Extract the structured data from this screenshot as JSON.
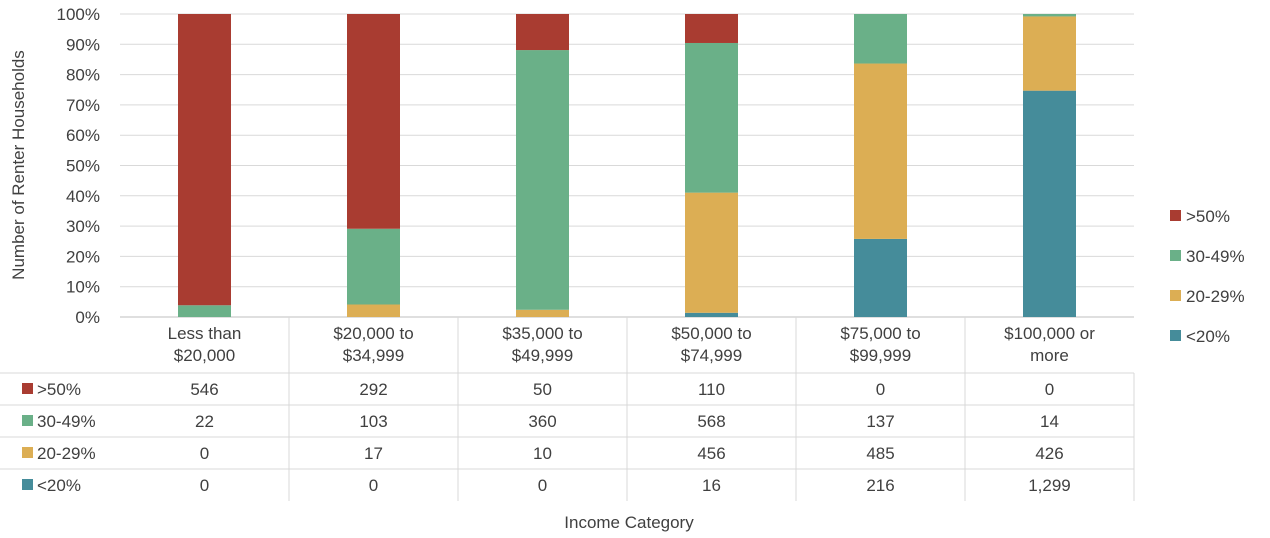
{
  "chart_data": {
    "type": "bar",
    "stacked": true,
    "normalized": true,
    "title": "",
    "xlabel": "Income Category",
    "ylabel": "Number of Renter Households",
    "ylim": [
      0,
      100
    ],
    "yticks": [
      "0%",
      "10%",
      "20%",
      "30%",
      "40%",
      "50%",
      "60%",
      "70%",
      "80%",
      "90%",
      "100%"
    ],
    "grid": true,
    "legend_position": "right",
    "categories": [
      [
        "Less than",
        "$20,000"
      ],
      [
        "$20,000 to",
        "$34,999"
      ],
      [
        "$35,000 to",
        "$49,999"
      ],
      [
        "$50,000 to",
        "$74,999"
      ],
      [
        "$75,000 to",
        "$99,999"
      ],
      [
        "$100,000 or",
        "more"
      ]
    ],
    "series": [
      {
        "name": "<20%",
        "color": "#458C9A",
        "values": [
          0,
          0,
          0,
          16,
          216,
          1299
        ],
        "labels": [
          "0",
          "0",
          "0",
          "16",
          "216",
          "1,299"
        ]
      },
      {
        "name": "20-29%",
        "color": "#DCAE54",
        "values": [
          0,
          17,
          10,
          456,
          485,
          426
        ],
        "labels": [
          "0",
          "17",
          "10",
          "456",
          "485",
          "426"
        ]
      },
      {
        "name": "30-49%",
        "color": "#6AB088",
        "values": [
          22,
          103,
          360,
          568,
          137,
          14
        ],
        "labels": [
          "22",
          "103",
          "360",
          "568",
          "137",
          "14"
        ]
      },
      {
        "name": ">50%",
        "color": "#A93C31",
        "values": [
          546,
          292,
          50,
          110,
          0,
          0
        ],
        "labels": [
          "546",
          "292",
          "50",
          "110",
          "0",
          "0"
        ]
      }
    ],
    "table_row_order": [
      ">50%",
      "30-49%",
      "20-29%",
      "<20%"
    ],
    "legend_order": [
      ">50%",
      "30-49%",
      "20-29%",
      "<20%"
    ]
  }
}
